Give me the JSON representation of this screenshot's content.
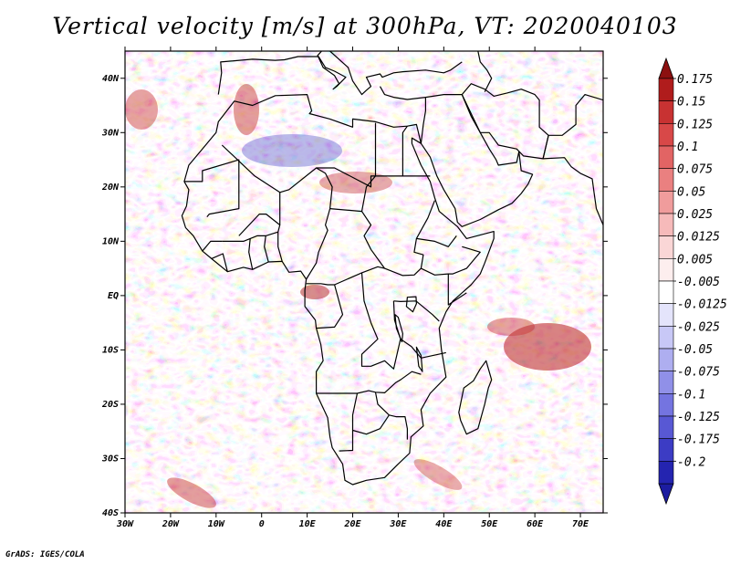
{
  "title": "Vertical velocity [m/s] at 300hPa, VT: 2020040103",
  "credit": "GrADS: IGES/COLA",
  "map": {
    "variable": "Vertical velocity",
    "units": "m/s",
    "level": "300hPa",
    "valid_time": "2020040103",
    "extent": {
      "lon_min": -30,
      "lon_max": 75,
      "lat_min": -40,
      "lat_max": 45
    },
    "lat_ticks": [
      {
        "value": 40,
        "label": "40N"
      },
      {
        "value": 30,
        "label": "30N"
      },
      {
        "value": 20,
        "label": "20N"
      },
      {
        "value": 10,
        "label": "10N"
      },
      {
        "value": 0,
        "label": "EQ"
      },
      {
        "value": -10,
        "label": "10S"
      },
      {
        "value": -20,
        "label": "20S"
      },
      {
        "value": -30,
        "label": "30S"
      },
      {
        "value": -40,
        "label": "40S"
      }
    ],
    "lon_ticks": [
      {
        "value": -30,
        "label": "30W"
      },
      {
        "value": -20,
        "label": "20W"
      },
      {
        "value": -10,
        "label": "10W"
      },
      {
        "value": 0,
        "label": "0"
      },
      {
        "value": 10,
        "label": "10E"
      },
      {
        "value": 20,
        "label": "20E"
      },
      {
        "value": 30,
        "label": "30E"
      },
      {
        "value": 40,
        "label": "40E"
      },
      {
        "value": 50,
        "label": "50E"
      },
      {
        "value": 60,
        "label": "60E"
      },
      {
        "value": 70,
        "label": "70E"
      }
    ]
  },
  "colorbar": {
    "levels": [
      {
        "label": "0.175",
        "color": "#b01c1c"
      },
      {
        "label": "0.15",
        "color": "#c83232"
      },
      {
        "label": "0.125",
        "color": "#d84848"
      },
      {
        "label": "0.1",
        "color": "#e26464"
      },
      {
        "label": "0.075",
        "color": "#ea8080"
      },
      {
        "label": "0.05",
        "color": "#f09c9c"
      },
      {
        "label": "0.025",
        "color": "#f6baba"
      },
      {
        "label": "0.0125",
        "color": "#fad6d6"
      },
      {
        "label": "0.005",
        "color": "#fdeeee"
      },
      {
        "label": "-0.005",
        "color": "#ffffff"
      },
      {
        "label": "-0.0125",
        "color": "#e4e4fb"
      },
      {
        "label": "-0.025",
        "color": "#c8c8f6"
      },
      {
        "label": "-0.05",
        "color": "#aeaef0"
      },
      {
        "label": "-0.075",
        "color": "#9090e8"
      },
      {
        "label": "-0.1",
        "color": "#7474e0"
      },
      {
        "label": "-0.125",
        "color": "#5858d4"
      },
      {
        "label": "-0.175",
        "color": "#3c3cc4"
      },
      {
        "label": "-0.2",
        "color": "#2424b0"
      }
    ],
    "top_triangle_color": "#8c1010",
    "bottom_triangle_color": "#1c1ca0"
  }
}
